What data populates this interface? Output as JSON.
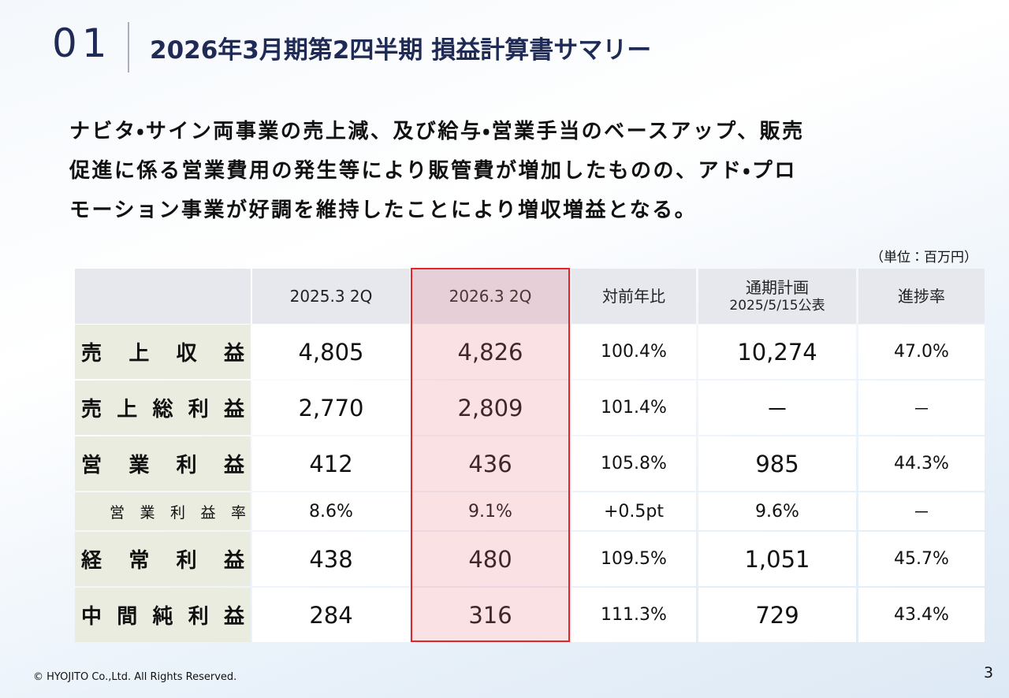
{
  "header": {
    "number": "01",
    "title": "2026年3月期第2四半期 損益計算書サマリー"
  },
  "summary": [
    "ナビタ・サイン両事業の売上減、及び給与・営業手当のベースアップ、販売",
    "促進に係る営業費用の発生等により販管費が増加したものの、アド・プロ",
    "モーション事業が好調を維持したことにより増収増益となる。"
  ],
  "unit": "（単位：百万円）",
  "table": {
    "columns": [
      {
        "label": "2025.3 2Q"
      },
      {
        "label": "2026.3 2Q"
      },
      {
        "label": "対前年比"
      },
      {
        "label": "通期計画",
        "sub": "2025/5/15公表"
      },
      {
        "label": "進捗率"
      }
    ],
    "rows": [
      {
        "label": "売上収益",
        "cells": [
          "4,805",
          "4,826",
          "100.4%",
          "10,274",
          "47.0%"
        ]
      },
      {
        "label": "売上総利益",
        "cells": [
          "2,770",
          "2,809",
          "101.4%",
          "－",
          "－"
        ]
      },
      {
        "label": "営業利益",
        "cells": [
          "412",
          "436",
          "105.8%",
          "985",
          "44.3%"
        ]
      },
      {
        "label": "営業利益率",
        "sub": true,
        "cells": [
          "8.6%",
          "9.1%",
          "+0.5pt",
          "9.6%",
          "－"
        ]
      },
      {
        "label": "経常利益",
        "cells": [
          "438",
          "480",
          "109.5%",
          "1,051",
          "45.7%"
        ]
      },
      {
        "label": "中間純利益",
        "cells": [
          "284",
          "316",
          "111.3%",
          "729",
          "43.4%"
        ]
      }
    ]
  },
  "footer": {
    "copyright": "© HYOJITO Co.,Ltd. All Rights Reserved.",
    "page": "3"
  }
}
